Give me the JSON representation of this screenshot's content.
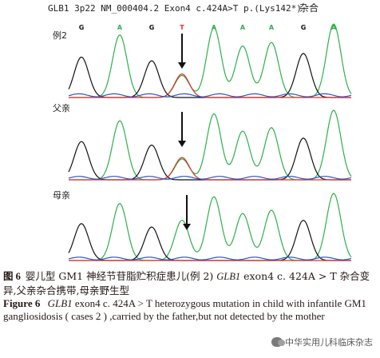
{
  "header": {
    "gene_line": "GLB1 3p22 NM_000404.2 Exon4  c.424A>T  p.(Lys142*)",
    "zygosity": "杂合"
  },
  "base_calls": [
    "G",
    "A",
    "G",
    "T",
    "A",
    "A",
    "A",
    "G",
    "A"
  ],
  "base_colors": {
    "A": "#2db04a",
    "C": "#2a56c6",
    "G": "#111111",
    "T": "#e0312b"
  },
  "panels": [
    {
      "label": "例2",
      "variant_call": "T",
      "status": "heterozygous"
    },
    {
      "label": "父亲",
      "variant_call": "T",
      "status": "heterozygous"
    },
    {
      "label": "母亲",
      "variant_call": "",
      "status": "wild-type"
    }
  ],
  "caption_cn": {
    "figure_num": "图 6",
    "part1": "婴儿型 GM1 神经节苷脂贮积症患儿(例 2)",
    "gene_italic": "GLB1",
    "part2": "exon4 c. 424A > T 杂合变异,父亲杂合携带,母亲野生型"
  },
  "caption_en": {
    "figure_num": "Figure 6",
    "gene_italic": "GLB1",
    "text": "exon4 c. 424A > T heterozygous mutation in child with infantile GM1 gangliosidosis ( cases 2 ) ,carried by the father,but not detected by the mother"
  },
  "watermark": {
    "text": "中华实用儿科临床杂志"
  }
}
